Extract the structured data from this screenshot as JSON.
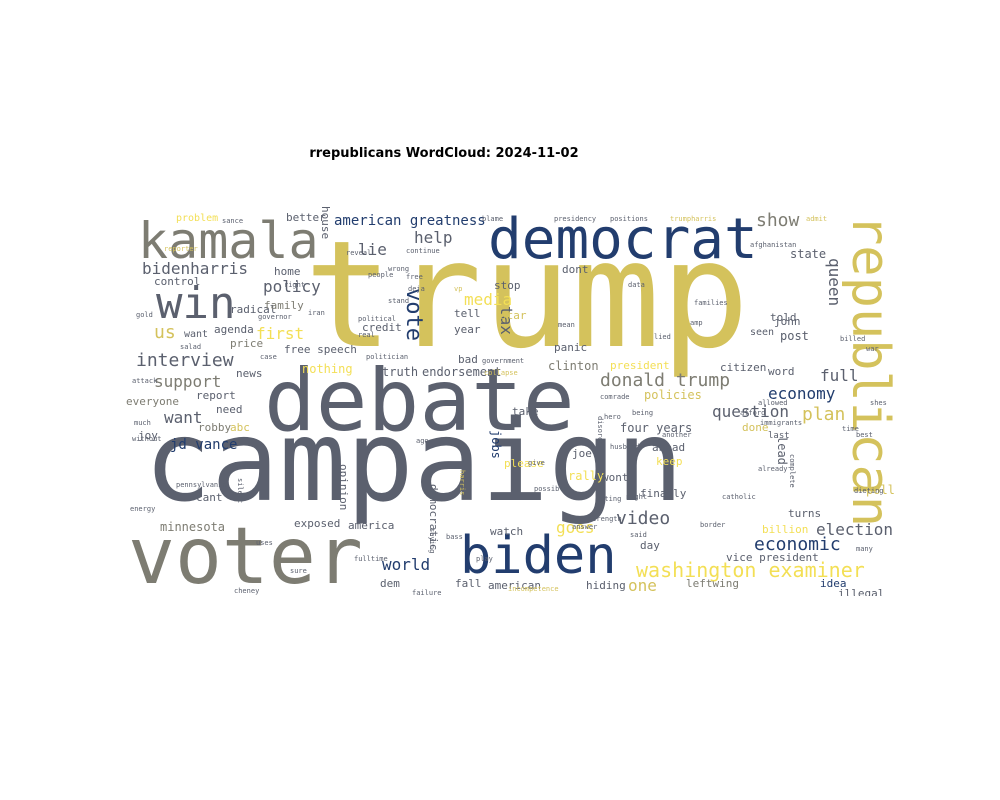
{
  "title": "rrepublicans WordCloud: 2024-11-02",
  "colors": {
    "gold": "#d4c25c",
    "slate": "#5b606e",
    "gray": "#7d7c72",
    "navy": "#223d6e",
    "yellow": "#f3df55",
    "mid": "#8a8a85"
  },
  "words": [
    {
      "text": "trump",
      "color": "gold"
    },
    {
      "text": "campaign",
      "color": "slate"
    },
    {
      "text": "debate",
      "color": "slate"
    },
    {
      "text": "voter",
      "color": "gray"
    },
    {
      "text": "democrat",
      "color": "navy"
    },
    {
      "text": "kamala",
      "color": "gray"
    },
    {
      "text": "republican",
      "color": "gold"
    },
    {
      "text": "biden",
      "color": "navy"
    },
    {
      "text": "win",
      "color": "slate"
    },
    {
      "text": "washington examiner",
      "color": "yellow"
    },
    {
      "text": "donald trump",
      "color": "gray"
    },
    {
      "text": "interview",
      "color": "slate"
    },
    {
      "text": "bidenharris",
      "color": "slate"
    },
    {
      "text": "vote",
      "color": "navy"
    },
    {
      "text": "show",
      "color": "gray"
    },
    {
      "text": "policy",
      "color": "slate"
    },
    {
      "text": "help",
      "color": "slate"
    },
    {
      "text": "economic",
      "color": "navy"
    },
    {
      "text": "support",
      "color": "gray"
    },
    {
      "text": "question",
      "color": "slate"
    },
    {
      "text": "election",
      "color": "slate"
    },
    {
      "text": "video",
      "color": "slate"
    },
    {
      "text": "plan",
      "color": "gold"
    },
    {
      "text": "full",
      "color": "slate"
    },
    {
      "text": "queen",
      "color": "slate"
    },
    {
      "text": "economy",
      "color": "navy"
    },
    {
      "text": "us",
      "color": "gold"
    },
    {
      "text": "media",
      "color": "yellow"
    },
    {
      "text": "want",
      "color": "slate"
    },
    {
      "text": "tax",
      "color": "slate"
    },
    {
      "text": "lie",
      "color": "slate"
    },
    {
      "text": "first",
      "color": "yellow"
    },
    {
      "text": "goes",
      "color": "yellow"
    },
    {
      "text": "one",
      "color": "gold"
    },
    {
      "text": "american greatness",
      "color": "navy"
    },
    {
      "text": "jd vance",
      "color": "navy"
    },
    {
      "text": "post",
      "color": "slate"
    },
    {
      "text": "world",
      "color": "navy"
    },
    {
      "text": "policies",
      "color": "gold"
    },
    {
      "text": "four years",
      "color": "slate"
    },
    {
      "text": "minnesota",
      "color": "gray"
    },
    {
      "text": "endorsement",
      "color": "slate"
    },
    {
      "text": "clinton",
      "color": "gray"
    },
    {
      "text": "jobs",
      "color": "navy"
    },
    {
      "text": "truth",
      "color": "slate"
    },
    {
      "text": "nothing",
      "color": "yellow"
    },
    {
      "text": "free speech",
      "color": "slate"
    },
    {
      "text": "everyone",
      "color": "gray"
    },
    {
      "text": "vice president",
      "color": "slate"
    },
    {
      "text": "fall",
      "color": "slate"
    },
    {
      "text": "american",
      "color": "slate"
    },
    {
      "text": "hiding",
      "color": "slate"
    },
    {
      "text": "america",
      "color": "slate"
    },
    {
      "text": "exposed",
      "color": "slate"
    },
    {
      "text": "state",
      "color": "slate"
    },
    {
      "text": "told",
      "color": "slate"
    },
    {
      "text": "john",
      "color": "slate"
    },
    {
      "text": "rally",
      "color": "yellow"
    },
    {
      "text": "keep",
      "color": "yellow"
    },
    {
      "text": "finally",
      "color": "slate"
    },
    {
      "text": "wont",
      "color": "slate"
    },
    {
      "text": "ahead",
      "color": "slate"
    },
    {
      "text": "billion",
      "color": "yellow"
    },
    {
      "text": "poll",
      "color": "gold"
    },
    {
      "text": "done",
      "color": "gold"
    },
    {
      "text": "word",
      "color": "slate"
    },
    {
      "text": "lead",
      "color": "slate"
    },
    {
      "text": "turns",
      "color": "slate"
    },
    {
      "text": "day",
      "color": "slate"
    },
    {
      "text": "watch",
      "color": "slate"
    },
    {
      "text": "please",
      "color": "yellow"
    },
    {
      "text": "joe",
      "color": "slate"
    },
    {
      "text": "take",
      "color": "slate"
    },
    {
      "text": "report",
      "color": "slate"
    },
    {
      "text": "need",
      "color": "slate"
    },
    {
      "text": "robby",
      "color": "gray"
    },
    {
      "text": "abc",
      "color": "gold"
    },
    {
      "text": "cnn",
      "color": "slate"
    },
    {
      "text": "cant",
      "color": "slate"
    },
    {
      "text": "agenda",
      "color": "slate"
    },
    {
      "text": "price",
      "color": "gray"
    },
    {
      "text": "news",
      "color": "slate"
    },
    {
      "text": "radical",
      "color": "slate"
    },
    {
      "text": "control",
      "color": "slate"
    },
    {
      "text": "home",
      "color": "slate"
    },
    {
      "text": "family",
      "color": "gray"
    },
    {
      "text": "credit",
      "color": "slate"
    },
    {
      "text": "panic",
      "color": "slate"
    },
    {
      "text": "bad",
      "color": "slate"
    },
    {
      "text": "year",
      "color": "slate"
    },
    {
      "text": "tell",
      "color": "slate"
    },
    {
      "text": "stop",
      "color": "slate"
    },
    {
      "text": "dont",
      "color": "slate"
    },
    {
      "text": "seen",
      "color": "slate"
    },
    {
      "text": "star",
      "color": "gold"
    },
    {
      "text": "citizen",
      "color": "slate"
    },
    {
      "text": "president",
      "color": "yellow"
    },
    {
      "text": "idea",
      "color": "navy"
    },
    {
      "text": "illegal",
      "color": "slate"
    },
    {
      "text": "leftwing",
      "color": "gray"
    },
    {
      "text": "dem",
      "color": "slate"
    },
    {
      "text": "democratic",
      "color": "slate"
    },
    {
      "text": "opinion",
      "color": "slate"
    },
    {
      "text": "better",
      "color": "slate"
    },
    {
      "text": "house",
      "color": "slate"
    },
    {
      "text": "problem",
      "color": "yellow"
    },
    {
      "text": "joy",
      "color": "slate"
    },
    {
      "text": "want",
      "color": "slate"
    },
    {
      "text": "last",
      "color": "slate"
    },
    {
      "text": "admit",
      "color": "gold"
    },
    {
      "text": "presidency",
      "color": "slate"
    },
    {
      "text": "positions",
      "color": "slate"
    },
    {
      "text": "trumpharris",
      "color": "gold"
    },
    {
      "text": "blame",
      "color": "slate"
    },
    {
      "text": "sance",
      "color": "slate"
    },
    {
      "text": "continue",
      "color": "slate"
    },
    {
      "text": "afghanistan",
      "color": "slate"
    },
    {
      "text": "billed",
      "color": "slate"
    },
    {
      "text": "catholic",
      "color": "slate"
    },
    {
      "text": "pennsylvania",
      "color": "slate"
    },
    {
      "text": "government",
      "color": "slate"
    },
    {
      "text": "collapse",
      "color": "gold"
    },
    {
      "text": "strength",
      "color": "slate"
    },
    {
      "text": "incompetence",
      "color": "gold"
    },
    {
      "text": "failure",
      "color": "slate"
    },
    {
      "text": "fulltime",
      "color": "slate"
    },
    {
      "text": "cheney",
      "color": "slate"
    },
    {
      "text": "many",
      "color": "slate"
    },
    {
      "text": "border",
      "color": "slate"
    },
    {
      "text": "already",
      "color": "slate"
    },
    {
      "text": "much",
      "color": "slate"
    },
    {
      "text": "without",
      "color": "slate"
    },
    {
      "text": "attack",
      "color": "slate"
    },
    {
      "text": "gold",
      "color": "slate"
    },
    {
      "text": "time",
      "color": "slate"
    },
    {
      "text": "allowed",
      "color": "slate"
    },
    {
      "text": "afford",
      "color": "slate"
    },
    {
      "text": "immigrants",
      "color": "slate"
    },
    {
      "text": "night",
      "color": "slate"
    },
    {
      "text": "voting",
      "color": "slate"
    },
    {
      "text": "answer",
      "color": "slate"
    },
    {
      "text": "said",
      "color": "slate"
    },
    {
      "text": "saying",
      "color": "slate"
    },
    {
      "text": "harris",
      "color": "gold"
    },
    {
      "text": "possible",
      "color": "slate"
    },
    {
      "text": "give",
      "color": "slate"
    },
    {
      "text": "mean",
      "color": "slate"
    },
    {
      "text": "real",
      "color": "slate"
    },
    {
      "text": "political",
      "color": "slate"
    },
    {
      "text": "politician",
      "color": "slate"
    },
    {
      "text": "reveal",
      "color": "slate"
    },
    {
      "text": "people",
      "color": "slate"
    },
    {
      "text": "wrong",
      "color": "slate"
    },
    {
      "text": "iran",
      "color": "slate"
    },
    {
      "text": "salad",
      "color": "slate"
    },
    {
      "text": "governor",
      "color": "slate"
    },
    {
      "text": "reporter",
      "color": "gold"
    },
    {
      "text": "comrade",
      "color": "slate"
    },
    {
      "text": "being",
      "color": "slate"
    },
    {
      "text": "another",
      "color": "slate"
    },
    {
      "text": "disorder",
      "color": "slate"
    },
    {
      "text": "husband",
      "color": "slate"
    },
    {
      "text": "silent",
      "color": "slate"
    },
    {
      "text": "complete",
      "color": "slate"
    },
    {
      "text": "sure",
      "color": "slate"
    },
    {
      "text": "uses",
      "color": "slate"
    },
    {
      "text": "bass",
      "color": "slate"
    },
    {
      "text": "hero",
      "color": "slate"
    },
    {
      "text": "ago",
      "color": "slate"
    },
    {
      "text": "must",
      "color": "slate"
    },
    {
      "text": "shes",
      "color": "slate"
    },
    {
      "text": "dieting",
      "color": "slate"
    },
    {
      "text": "families",
      "color": "slate"
    },
    {
      "text": "play",
      "color": "slate"
    },
    {
      "text": "deja",
      "color": "slate"
    },
    {
      "text": "vp",
      "color": "gold"
    },
    {
      "text": "free",
      "color": "slate"
    },
    {
      "text": "data",
      "color": "slate"
    },
    {
      "text": "amp",
      "color": "slate"
    },
    {
      "text": "lied",
      "color": "slate"
    },
    {
      "text": "best",
      "color": "slate"
    },
    {
      "text": "war",
      "color": "slate"
    },
    {
      "text": "case",
      "color": "slate"
    },
    {
      "text": "energy",
      "color": "slate"
    },
    {
      "text": "stand",
      "color": "slate"
    },
    {
      "text": "right",
      "color": "slate"
    },
    {
      "text": "nude",
      "color": "gold"
    },
    {
      "text": "sir",
      "color": "slate"
    },
    {
      "text": "good",
      "color": "slate"
    }
  ]
}
